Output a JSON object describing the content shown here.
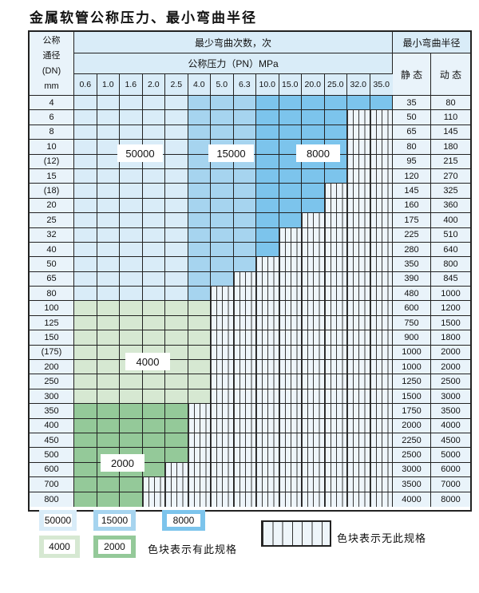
{
  "title": "金属软管公称压力、最小弯曲半径",
  "table": {
    "dn_header_lines": [
      "公称",
      "通径",
      "(DN)",
      "mm"
    ],
    "bend_header": "最少弯曲次数，次",
    "pressure_header": "公称压力（PN）MPa",
    "radius_header": "最小弯曲半径",
    "static_header": "静 态",
    "dynamic_header": "动 态",
    "pressure_cols": [
      "0.6",
      "1.0",
      "1.6",
      "2.0",
      "2.5",
      "4.0",
      "5.0",
      "6.3",
      "10.0",
      "15.0",
      "20.0",
      "25.0",
      "32.0",
      "35.0"
    ],
    "rows": [
      {
        "dn": "4",
        "colored": 14,
        "palette": "blue",
        "static": "35",
        "dynamic": "80"
      },
      {
        "dn": "6",
        "colored": 12,
        "palette": "blue",
        "static": "50",
        "dynamic": "110"
      },
      {
        "dn": "8",
        "colored": 12,
        "palette": "blue",
        "static": "65",
        "dynamic": "145"
      },
      {
        "dn": "10",
        "colored": 12,
        "palette": "blue",
        "static": "80",
        "dynamic": "180"
      },
      {
        "dn": "(12)",
        "colored": 12,
        "palette": "blue",
        "static": "95",
        "dynamic": "215"
      },
      {
        "dn": "15",
        "colored": 12,
        "palette": "blue",
        "static": "120",
        "dynamic": "270"
      },
      {
        "dn": "(18)",
        "colored": 11,
        "palette": "blue",
        "static": "145",
        "dynamic": "325"
      },
      {
        "dn": "20",
        "colored": 11,
        "palette": "blue",
        "static": "160",
        "dynamic": "360"
      },
      {
        "dn": "25",
        "colored": 10,
        "palette": "blue",
        "static": "175",
        "dynamic": "400"
      },
      {
        "dn": "32",
        "colored": 9,
        "palette": "blue",
        "static": "225",
        "dynamic": "510"
      },
      {
        "dn": "40",
        "colored": 9,
        "palette": "blue",
        "static": "280",
        "dynamic": "640"
      },
      {
        "dn": "50",
        "colored": 8,
        "palette": "blue",
        "static": "350",
        "dynamic": "800"
      },
      {
        "dn": "65",
        "colored": 7,
        "palette": "blue",
        "static": "390",
        "dynamic": "845"
      },
      {
        "dn": "80",
        "colored": 6,
        "palette": "blue",
        "static": "480",
        "dynamic": "1000"
      },
      {
        "dn": "100",
        "colored": 6,
        "palette": "green-light",
        "static": "600",
        "dynamic": "1200"
      },
      {
        "dn": "125",
        "colored": 6,
        "palette": "green-light",
        "static": "750",
        "dynamic": "1500"
      },
      {
        "dn": "150",
        "colored": 6,
        "palette": "green-light",
        "static": "900",
        "dynamic": "1800"
      },
      {
        "dn": "(175)",
        "colored": 6,
        "palette": "green-light",
        "static": "1000",
        "dynamic": "2000"
      },
      {
        "dn": "200",
        "colored": 6,
        "palette": "green-light",
        "static": "1000",
        "dynamic": "2000"
      },
      {
        "dn": "250",
        "colored": 6,
        "palette": "green-light",
        "static": "1250",
        "dynamic": "2500"
      },
      {
        "dn": "300",
        "colored": 6,
        "palette": "green-light",
        "static": "1500",
        "dynamic": "3000"
      },
      {
        "dn": "350",
        "colored": 5,
        "palette": "green-dark",
        "static": "1750",
        "dynamic": "3500"
      },
      {
        "dn": "400",
        "colored": 5,
        "palette": "green-dark",
        "static": "2000",
        "dynamic": "4000"
      },
      {
        "dn": "450",
        "colored": 5,
        "palette": "green-dark",
        "static": "2250",
        "dynamic": "4500"
      },
      {
        "dn": "500",
        "colored": 5,
        "palette": "green-dark",
        "static": "2500",
        "dynamic": "5000"
      },
      {
        "dn": "600",
        "colored": 4,
        "palette": "green-dark",
        "static": "3000",
        "dynamic": "6000"
      },
      {
        "dn": "700",
        "colored": 3,
        "palette": "green-dark",
        "static": "3500",
        "dynamic": "7000"
      },
      {
        "dn": "800",
        "colored": 3,
        "palette": "green-dark",
        "static": "4000",
        "dynamic": "8000"
      }
    ]
  },
  "overlays": {
    "l50000": "50000",
    "l15000": "15000",
    "l8000": "8000",
    "l4000": "4000",
    "l2000": "2000"
  },
  "legend": {
    "sw50000": "50000",
    "sw15000": "15000",
    "sw8000": "8000",
    "sw4000": "4000",
    "sw2000": "2000",
    "has_spec": "色块表示有此规格",
    "no_spec": "色块表示无此规格"
  },
  "colors": {
    "blue_light": "#d9ecf8",
    "blue_mid": "#a6d4ef",
    "blue_dark": "#7cc4ec",
    "green_light": "#d6e8d2",
    "green_dark": "#94c999",
    "header_band": "#d9ecf8",
    "label_cell": "#e9f3fa",
    "grid": "#222222"
  }
}
